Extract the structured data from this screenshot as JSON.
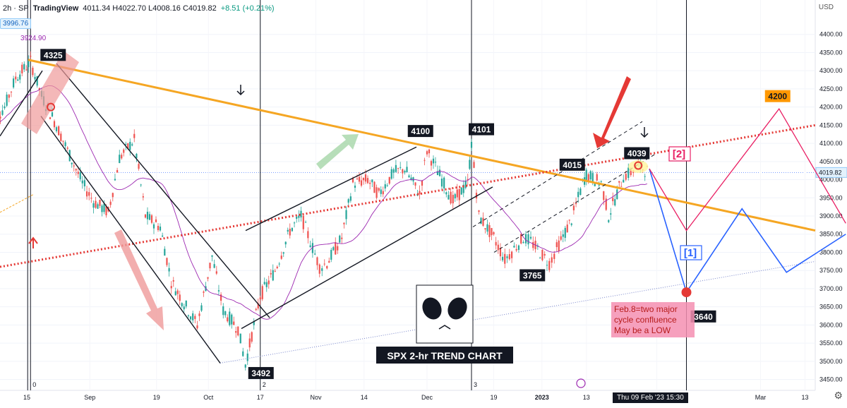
{
  "header": {
    "symbol": "2h · SP",
    "platform": "TradingView",
    "ohlc": "4011.34 H4022.70 L4008.16 C4019.82",
    "change": "+8.51 (+0.21%)",
    "currency": "USD",
    "side_labels": [
      "3996.76",
      "3924.90"
    ]
  },
  "chart_data": {
    "type": "candlestick",
    "title": "SPX 2-hr TREND CHART",
    "y_axis": {
      "range": [
        3420,
        4450
      ],
      "ticks": [
        4400,
        4350,
        4300,
        4250,
        4200,
        4150,
        4100,
        4050,
        4000,
        3950,
        3900,
        3850,
        3800,
        3750,
        3700,
        3650,
        3600,
        3550,
        3500,
        3450
      ],
      "current_price": "4019.82"
    },
    "x_axis": {
      "ticks": [
        "15",
        "Sep",
        "19",
        "Oct",
        "17",
        "Nov",
        "14",
        "Dec",
        "19",
        "2023",
        "13",
        "Feb",
        "Mar",
        "13"
      ],
      "extra_ticks": [
        "0",
        "2",
        "3"
      ],
      "crosshair_label": "Thu 09 Feb '23   15:30"
    },
    "price_path": [
      [
        "2022-08-05",
        4150
      ],
      [
        "2022-08-09",
        4200
      ],
      [
        "2022-08-12",
        4280
      ],
      [
        "2022-08-16",
        4325
      ],
      [
        "2022-08-19",
        4230
      ],
      [
        "2022-08-23",
        4150
      ],
      [
        "2022-08-26",
        4080
      ],
      [
        "2022-08-30",
        3990
      ],
      [
        "2022-09-02",
        3940
      ],
      [
        "2022-09-06",
        3910
      ],
      [
        "2022-09-09",
        4060
      ],
      [
        "2022-09-13",
        4110
      ],
      [
        "2022-09-16",
        3900
      ],
      [
        "2022-09-20",
        3870
      ],
      [
        "2022-09-23",
        3720
      ],
      [
        "2022-09-27",
        3650
      ],
      [
        "2022-09-30",
        3600
      ],
      [
        "2022-10-04",
        3790
      ],
      [
        "2022-10-07",
        3640
      ],
      [
        "2022-10-11",
        3590
      ],
      [
        "2022-10-13",
        3492
      ],
      [
        "2022-10-17",
        3680
      ],
      [
        "2022-10-21",
        3750
      ],
      [
        "2022-10-25",
        3860
      ],
      [
        "2022-10-28",
        3900
      ],
      [
        "2022-11-02",
        3760
      ],
      [
        "2022-11-04",
        3770
      ],
      [
        "2022-11-08",
        3840
      ],
      [
        "2022-11-11",
        3990
      ],
      [
        "2022-11-15",
        4000
      ],
      [
        "2022-11-18",
        3960
      ],
      [
        "2022-11-22",
        4020
      ],
      [
        "2022-11-25",
        4030
      ],
      [
        "2022-11-29",
        3960
      ],
      [
        "2022-12-01",
        4080
      ],
      [
        "2022-12-05",
        4000
      ],
      [
        "2022-12-08",
        3940
      ],
      [
        "2022-12-12",
        3990
      ],
      [
        "2022-12-13",
        4101
      ],
      [
        "2022-12-15",
        3900
      ],
      [
        "2022-12-19",
        3840
      ],
      [
        "2022-12-22",
        3780
      ],
      [
        "2022-12-27",
        3840
      ],
      [
        "2022-12-29",
        3830
      ],
      [
        "2023-01-03",
        3770
      ],
      [
        "2023-01-05",
        3810
      ],
      [
        "2023-01-09",
        3890
      ],
      [
        "2023-01-12",
        3990
      ],
      [
        "2023-01-13",
        4015
      ],
      [
        "2023-01-17",
        3990
      ],
      [
        "2023-01-19",
        3900
      ],
      [
        "2023-01-23",
        4010
      ],
      [
        "2023-01-25",
        4020
      ],
      [
        "2023-01-27",
        4039
      ],
      [
        "2023-01-30",
        4019.82
      ]
    ],
    "projection_1": [
      [
        "2023-01-30",
        4030
      ],
      [
        "2023-02-09",
        3690
      ],
      [
        "2023-02-24",
        3920
      ],
      [
        "2023-03-08",
        3745
      ],
      [
        "2023-03-24",
        3850
      ]
    ],
    "projection_2": [
      [
        "2023-01-30",
        4030
      ],
      [
        "2023-02-09",
        3860
      ],
      [
        "2023-03-06",
        4195
      ],
      [
        "2023-03-24",
        3880
      ]
    ],
    "price_labels": [
      {
        "text": "4325",
        "date": "2022-08-16",
        "price": 4325
      },
      {
        "text": "4100",
        "date": "2022-11-30",
        "price": 4100
      },
      {
        "text": "4101",
        "date": "2022-12-13",
        "price": 4101
      },
      {
        "text": "4015",
        "date": "2023-01-13",
        "price": 4015
      },
      {
        "text": "4039",
        "date": "2023-01-27",
        "price": 4039
      },
      {
        "text": "3765",
        "date": "2023-01-03",
        "price": 3765
      },
      {
        "text": "3492",
        "date": "2022-10-13",
        "price": 3492
      },
      {
        "text": "3640",
        "date": "2023-02-09",
        "price": 3640
      },
      {
        "text": "4200",
        "date": "2023-03-06",
        "price": 4200
      }
    ],
    "wave_labels": [
      "[1]",
      "[2]"
    ],
    "annotation": [
      "Feb.8=two major",
      "cycle confluence",
      "May be a LOW"
    ],
    "colors": {
      "up": "#26a69a",
      "down": "#ef5350",
      "trendline": "#f5a623",
      "projection_1": "#2962ff",
      "projection_2": "#e91e63",
      "moving_average": "#9c27b0",
      "annotation_bg": "#f48fb1"
    }
  }
}
